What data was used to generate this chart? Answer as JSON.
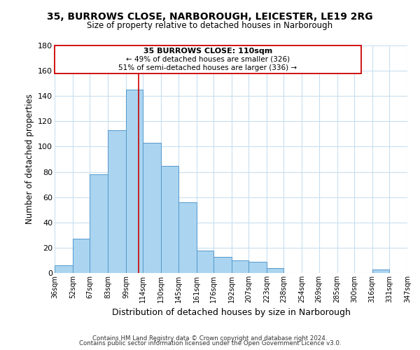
{
  "title": "35, BURROWS CLOSE, NARBOROUGH, LEICESTER, LE19 2RG",
  "subtitle": "Size of property relative to detached houses in Narborough",
  "xlabel": "Distribution of detached houses by size in Narborough",
  "ylabel": "Number of detached properties",
  "bar_left_edges": [
    36,
    52,
    67,
    83,
    99,
    114,
    130,
    145,
    161,
    176,
    192,
    207,
    223,
    238,
    254,
    269,
    285,
    300,
    316,
    331
  ],
  "bar_heights": [
    6,
    27,
    78,
    113,
    145,
    103,
    85,
    56,
    18,
    13,
    10,
    9,
    4,
    0,
    0,
    0,
    0,
    0,
    3,
    0
  ],
  "bar_widths": [
    16,
    15,
    16,
    16,
    15,
    16,
    15,
    16,
    15,
    16,
    15,
    16,
    15,
    16,
    15,
    16,
    15,
    16,
    15,
    16
  ],
  "bar_color": "#aad4f0",
  "bar_edge_color": "#5599cc",
  "tick_labels": [
    "36sqm",
    "52sqm",
    "67sqm",
    "83sqm",
    "99sqm",
    "114sqm",
    "130sqm",
    "145sqm",
    "161sqm",
    "176sqm",
    "192sqm",
    "207sqm",
    "223sqm",
    "238sqm",
    "254sqm",
    "269sqm",
    "285sqm",
    "300sqm",
    "316sqm",
    "331sqm",
    "347sqm"
  ],
  "tick_positions": [
    36,
    52,
    67,
    83,
    99,
    114,
    130,
    145,
    161,
    176,
    192,
    207,
    223,
    238,
    254,
    269,
    285,
    300,
    316,
    331,
    347
  ],
  "ylim": [
    0,
    180
  ],
  "yticks": [
    0,
    20,
    40,
    60,
    80,
    100,
    120,
    140,
    160,
    180
  ],
  "vline_x": 110,
  "vline_color": "#cc0000",
  "annotation_title": "35 BURROWS CLOSE: 110sqm",
  "annotation_line1": "← 49% of detached houses are smaller (326)",
  "annotation_line2": "51% of semi-detached houses are larger (336) →",
  "footer1": "Contains HM Land Registry data © Crown copyright and database right 2024.",
  "footer2": "Contains public sector information licensed under the Open Government Licence v3.0.",
  "bg_color": "#ffffff",
  "grid_color": "#c8dff0"
}
